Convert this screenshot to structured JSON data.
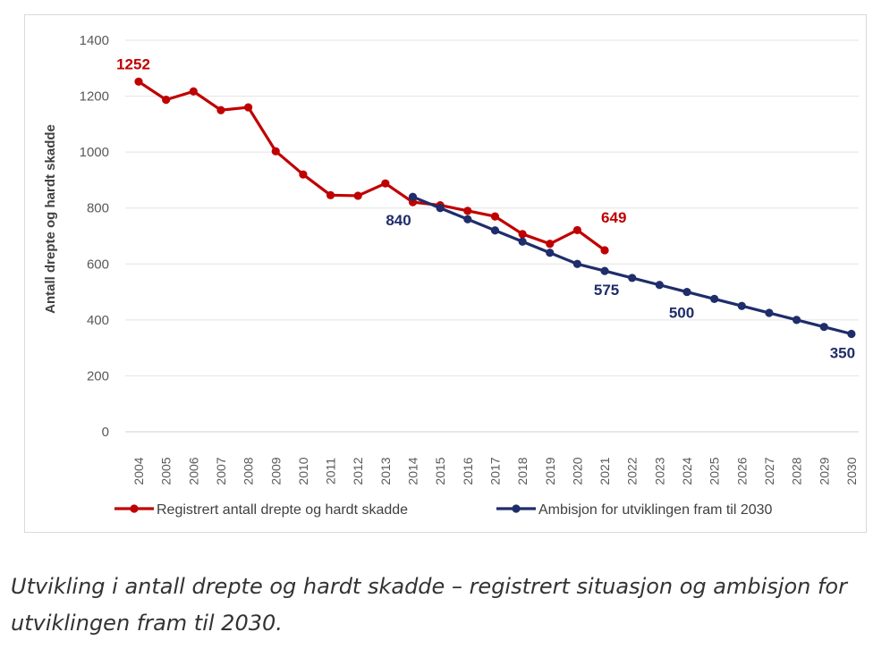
{
  "chart_data": {
    "type": "line",
    "title": "",
    "xlabel": "",
    "ylabel": "Antall drepte og hardt skadde",
    "ylim": [
      0,
      1400
    ],
    "yticks": [
      0,
      200,
      400,
      600,
      800,
      1000,
      1200,
      1400
    ],
    "grid": true,
    "legend_position": "bottom",
    "categories": [
      "2004",
      "2005",
      "2006",
      "2007",
      "2008",
      "2009",
      "2010",
      "2011",
      "2012",
      "2013",
      "2014",
      "2015",
      "2016",
      "2017",
      "2018",
      "2019",
      "2020",
      "2021",
      "2022",
      "2023",
      "2024",
      "2025",
      "2026",
      "2027",
      "2028",
      "2029",
      "2030"
    ],
    "series": [
      {
        "name": "Registrert antall drepte og hardt skadde",
        "color": "#c00000",
        "x": [
          "2004",
          "2005",
          "2006",
          "2007",
          "2008",
          "2009",
          "2010",
          "2011",
          "2012",
          "2013",
          "2014",
          "2015",
          "2016",
          "2017",
          "2018",
          "2019",
          "2020",
          "2021"
        ],
        "values": [
          1252,
          1187,
          1217,
          1150,
          1160,
          1003,
          920,
          846,
          844,
          888,
          821,
          810,
          790,
          770,
          707,
          672,
          721,
          649
        ]
      },
      {
        "name": "Ambisjon for utviklingen fram til 2030",
        "color": "#1f2d6b",
        "x": [
          "2014",
          "2015",
          "2016",
          "2017",
          "2018",
          "2019",
          "2020",
          "2021",
          "2022",
          "2023",
          "2024",
          "2025",
          "2026",
          "2027",
          "2028",
          "2029",
          "2030"
        ],
        "values": [
          840,
          800,
          760,
          720,
          680,
          640,
          600,
          575,
          550,
          525,
          500,
          475,
          450,
          425,
          400,
          375,
          350
        ]
      }
    ],
    "annotations": [
      {
        "text": "1252",
        "series": 0,
        "x": "2004",
        "color": "#c00000"
      },
      {
        "text": "649",
        "series": 0,
        "x": "2021",
        "color": "#c00000"
      },
      {
        "text": "840",
        "series": 1,
        "x": "2014",
        "color": "#1f2d6b"
      },
      {
        "text": "575",
        "series": 1,
        "x": "2021",
        "color": "#1f2d6b"
      },
      {
        "text": "500",
        "series": 1,
        "x": "2024",
        "color": "#1f2d6b"
      },
      {
        "text": "350",
        "series": 1,
        "x": "2030",
        "color": "#1f2d6b"
      }
    ]
  },
  "caption": "Utvikling i antall drepte og hardt skadde – registrert situasjon og ambisjon for utviklingen fram til 2030."
}
